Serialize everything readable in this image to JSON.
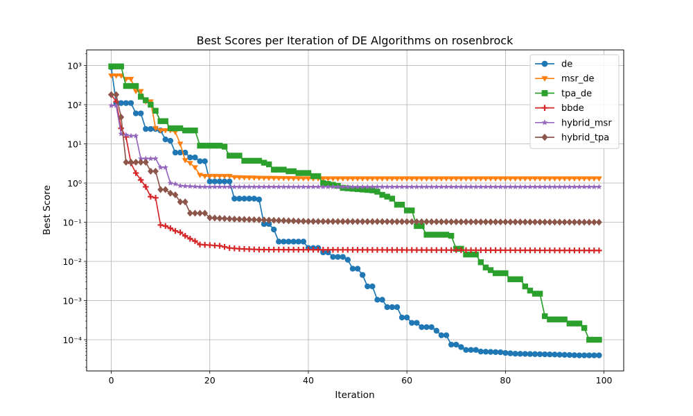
{
  "chart_data": {
    "type": "line",
    "title": "Best Scores per Iteration of DE Algorithms on rosenbrock",
    "xlabel": "Iteration",
    "ylabel": "Best Score",
    "xlim": [
      -5,
      104
    ],
    "ylim": [
      1.6e-05,
      2500
    ],
    "yscale": "log",
    "grid": true,
    "legend_position": "top-right",
    "x_ticks": [
      0,
      20,
      40,
      60,
      80,
      100
    ],
    "x_tick_labels": [
      "0",
      "20",
      "40",
      "60",
      "80",
      "100"
    ],
    "y_ticks": [
      0.0001,
      0.001,
      0.01,
      0.1,
      1,
      10,
      100,
      1000
    ],
    "y_tick_labels": [
      "10⁻⁴",
      "10⁻³",
      "10⁻²",
      "10⁻¹",
      "10⁰",
      "10¹",
      "10²",
      "10³"
    ],
    "series": [
      {
        "name": "de",
        "color": "#1f77b4",
        "marker": "circle",
        "points": [
          [
            0,
            900
          ],
          [
            1,
            110
          ],
          [
            4,
            110
          ],
          [
            5,
            60
          ],
          [
            6,
            60
          ],
          [
            7,
            24
          ],
          [
            9,
            24
          ],
          [
            10,
            22
          ],
          [
            11,
            13
          ],
          [
            12,
            12
          ],
          [
            13,
            6
          ],
          [
            15,
            6
          ],
          [
            16,
            4.5
          ],
          [
            17,
            4.5
          ],
          [
            18,
            3.6
          ],
          [
            19,
            3.6
          ],
          [
            20,
            1.1
          ],
          [
            24,
            1.1
          ],
          [
            25,
            0.4
          ],
          [
            29,
            0.4
          ],
          [
            30,
            0.38
          ],
          [
            31,
            0.09
          ],
          [
            32,
            0.09
          ],
          [
            33,
            0.065
          ],
          [
            34,
            0.032
          ],
          [
            39,
            0.032
          ],
          [
            40,
            0.022
          ],
          [
            42,
            0.022
          ],
          [
            43,
            0.017
          ],
          [
            44,
            0.017
          ],
          [
            45,
            0.013
          ],
          [
            47,
            0.013
          ],
          [
            48,
            0.011
          ],
          [
            49,
            0.0065
          ],
          [
            50,
            0.0065
          ],
          [
            51,
            0.0045
          ],
          [
            52,
            0.0023
          ],
          [
            53,
            0.0023
          ],
          [
            54,
            0.00105
          ],
          [
            55,
            0.00105
          ],
          [
            56,
            0.00068
          ],
          [
            58,
            0.00068
          ],
          [
            59,
            0.00037
          ],
          [
            60,
            0.00037
          ],
          [
            61,
            0.00027
          ],
          [
            62,
            0.00027
          ],
          [
            63,
            0.00021
          ],
          [
            65,
            0.00021
          ],
          [
            66,
            0.00017
          ],
          [
            67,
            0.00013
          ],
          [
            68,
            0.00013
          ],
          [
            69,
            7.5e-05
          ],
          [
            70,
            7.5e-05
          ],
          [
            71,
            6.5e-05
          ],
          [
            72,
            5.5e-05
          ],
          [
            74,
            5.5e-05
          ],
          [
            75,
            5e-05
          ],
          [
            79,
            4.8e-05
          ],
          [
            80,
            4.6e-05
          ],
          [
            82,
            4.4e-05
          ],
          [
            90,
            4.2e-05
          ],
          [
            95,
            4e-05
          ],
          [
            99,
            4e-05
          ]
        ]
      },
      {
        "name": "msr_de",
        "color": "#ff7f0e",
        "marker": "triangle-down",
        "points": [
          [
            0,
            550
          ],
          [
            2,
            550
          ],
          [
            3,
            450
          ],
          [
            4,
            450
          ],
          [
            5,
            220
          ],
          [
            6,
            220
          ],
          [
            7,
            120
          ],
          [
            8,
            120
          ],
          [
            9,
            25
          ],
          [
            10,
            22
          ],
          [
            12,
            22
          ],
          [
            13,
            20
          ],
          [
            14,
            10
          ],
          [
            15,
            3.8
          ],
          [
            16,
            3.2
          ],
          [
            17,
            2.5
          ],
          [
            18,
            1.6
          ],
          [
            19,
            1.5
          ],
          [
            24,
            1.5
          ],
          [
            25,
            1.4
          ],
          [
            30,
            1.35
          ],
          [
            40,
            1.3
          ],
          [
            99,
            1.3
          ]
        ]
      },
      {
        "name": "tpa_de",
        "color": "#2ca02c",
        "marker": "square",
        "points": [
          [
            0,
            950
          ],
          [
            2,
            950
          ],
          [
            3,
            300
          ],
          [
            5,
            300
          ],
          [
            6,
            160
          ],
          [
            7,
            130
          ],
          [
            8,
            100
          ],
          [
            9,
            70
          ],
          [
            10,
            38
          ],
          [
            11,
            38
          ],
          [
            12,
            25
          ],
          [
            14,
            25
          ],
          [
            15,
            22
          ],
          [
            17,
            22
          ],
          [
            18,
            9
          ],
          [
            22,
            9
          ],
          [
            23,
            8.5
          ],
          [
            24,
            5
          ],
          [
            26,
            5
          ],
          [
            27,
            3.7
          ],
          [
            30,
            3.7
          ],
          [
            31,
            3.3
          ],
          [
            32,
            3
          ],
          [
            33,
            2.2
          ],
          [
            35,
            2.2
          ],
          [
            36,
            2
          ],
          [
            37,
            2
          ],
          [
            38,
            1.8
          ],
          [
            40,
            1.8
          ],
          [
            41,
            1.5
          ],
          [
            42,
            1.5
          ],
          [
            43,
            1
          ],
          [
            45,
            0.9
          ],
          [
            46,
            0.85
          ],
          [
            47,
            0.75
          ],
          [
            50,
            0.7
          ],
          [
            53,
            0.65
          ],
          [
            54,
            0.6
          ],
          [
            55,
            0.5
          ],
          [
            56,
            0.45
          ],
          [
            57,
            0.4
          ],
          [
            58,
            0.28
          ],
          [
            59,
            0.28
          ],
          [
            60,
            0.2
          ],
          [
            61,
            0.2
          ],
          [
            62,
            0.08
          ],
          [
            63,
            0.08
          ],
          [
            64,
            0.048
          ],
          [
            68,
            0.048
          ],
          [
            69,
            0.045
          ],
          [
            70,
            0.021
          ],
          [
            71,
            0.021
          ],
          [
            72,
            0.015
          ],
          [
            74,
            0.015
          ],
          [
            75,
            0.0095
          ],
          [
            76,
            0.007
          ],
          [
            77,
            0.006
          ],
          [
            78,
            0.005
          ],
          [
            80,
            0.005
          ],
          [
            81,
            0.0035
          ],
          [
            83,
            0.0035
          ],
          [
            84,
            0.0023
          ],
          [
            85,
            0.0018
          ],
          [
            86,
            0.0015
          ],
          [
            87,
            0.0015
          ],
          [
            88,
            0.0004
          ],
          [
            89,
            0.00033
          ],
          [
            92,
            0.00033
          ],
          [
            93,
            0.00026
          ],
          [
            95,
            0.00026
          ],
          [
            96,
            0.0002
          ],
          [
            97,
            0.0001
          ],
          [
            99,
            0.0001
          ]
        ]
      },
      {
        "name": "bbde",
        "color": "#d62728",
        "marker": "plus",
        "points": [
          [
            0,
            180
          ],
          [
            1,
            120
          ],
          [
            2,
            25
          ],
          [
            3,
            15
          ],
          [
            4,
            3.2
          ],
          [
            5,
            1.8
          ],
          [
            6,
            1.2
          ],
          [
            7,
            0.8
          ],
          [
            8,
            0.45
          ],
          [
            9,
            0.42
          ],
          [
            10,
            0.085
          ],
          [
            11,
            0.08
          ],
          [
            12,
            0.07
          ],
          [
            13,
            0.06
          ],
          [
            14,
            0.055
          ],
          [
            15,
            0.045
          ],
          [
            16,
            0.038
          ],
          [
            17,
            0.033
          ],
          [
            18,
            0.027
          ],
          [
            22,
            0.025
          ],
          [
            24,
            0.022
          ],
          [
            26,
            0.021
          ],
          [
            30,
            0.02
          ],
          [
            99,
            0.019
          ]
        ]
      },
      {
        "name": "hybrid_msr",
        "color": "#9467bd",
        "marker": "star",
        "points": [
          [
            0,
            95
          ],
          [
            1,
            95
          ],
          [
            2,
            18
          ],
          [
            3,
            17
          ],
          [
            4,
            16
          ],
          [
            5,
            16
          ],
          [
            6,
            4.2
          ],
          [
            9,
            4.2
          ],
          [
            10,
            2.5
          ],
          [
            11,
            2.5
          ],
          [
            12,
            1
          ],
          [
            13,
            0.95
          ],
          [
            14,
            0.85
          ],
          [
            18,
            0.8
          ],
          [
            30,
            0.8
          ],
          [
            99,
            0.8
          ]
        ]
      },
      {
        "name": "hybrid_tpa",
        "color": "#8c564b",
        "marker": "diamond",
        "points": [
          [
            0,
            180
          ],
          [
            1,
            180
          ],
          [
            2,
            48
          ],
          [
            3,
            3.4
          ],
          [
            7,
            3.4
          ],
          [
            8,
            2
          ],
          [
            9,
            2
          ],
          [
            10,
            0.68
          ],
          [
            11,
            0.68
          ],
          [
            12,
            0.55
          ],
          [
            13,
            0.5
          ],
          [
            14,
            0.33
          ],
          [
            15,
            0.33
          ],
          [
            16,
            0.17
          ],
          [
            19,
            0.17
          ],
          [
            20,
            0.13
          ],
          [
            25,
            0.12
          ],
          [
            30,
            0.115
          ],
          [
            40,
            0.105
          ],
          [
            99,
            0.1
          ]
        ]
      }
    ]
  }
}
